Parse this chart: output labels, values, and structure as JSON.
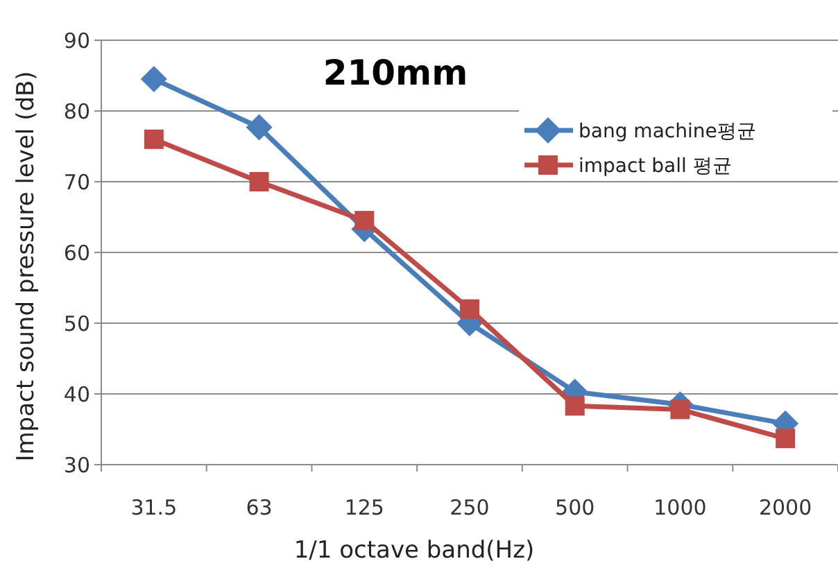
{
  "chart_data": {
    "type": "line",
    "title": "210mm",
    "xlabel": "1/1 octave band(Hz)",
    "ylabel": "Impact sound  pressure level (dB)",
    "categories": [
      "31.5",
      "63",
      "125",
      "250",
      "500",
      "1000",
      "2000"
    ],
    "series": [
      {
        "name": "bang machine평균",
        "color": "#4a7ebb",
        "marker": "diamond",
        "values": [
          84.5,
          77.7,
          63.3,
          50,
          40.3,
          38.5,
          35.8
        ]
      },
      {
        "name": "impact ball 평균",
        "color": "#be4b48",
        "marker": "square",
        "values": [
          76,
          70,
          64.5,
          52,
          38.3,
          37.8,
          33.7
        ]
      }
    ],
    "ylim": [
      30,
      90
    ],
    "yticks": [
      30,
      40,
      50,
      60,
      70,
      80,
      90
    ],
    "grid": "y",
    "legend": "top right"
  }
}
